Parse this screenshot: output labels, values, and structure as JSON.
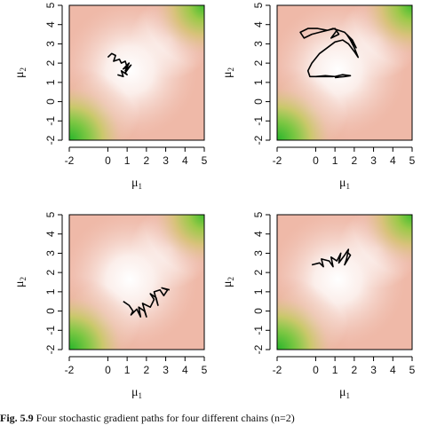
{
  "figure": {
    "caption_label": "Fig. 5.9",
    "caption_text": "Four stochastic gradient paths for four different chains (n=2)"
  },
  "chart_data": [
    {
      "type": "line",
      "panel": "top-left",
      "xlabel": "μ",
      "xlabel_sub": "1",
      "ylabel": "μ",
      "ylabel_sub": "2",
      "xlim": [
        -2,
        5
      ],
      "ylim": [
        -2,
        5
      ],
      "xticks": [
        "-2",
        "0",
        "1",
        "2",
        "3",
        "4",
        "5"
      ],
      "yticks": [
        "-2",
        "-1",
        "0",
        "1",
        "2",
        "3",
        "4",
        "5"
      ],
      "background": "density surface: green minima near (-2,-2) and (5,5), pink elsewhere, white plateau near center",
      "series": [
        {
          "x": [
            0.0,
            0.2,
            0.4,
            0.3,
            0.6,
            0.7,
            0.9,
            1.0,
            0.8,
            1.1,
            0.9,
            1.2,
            0.9,
            1.0,
            0.7,
            0.8,
            0.5
          ],
          "y": [
            2.3,
            2.5,
            2.4,
            2.1,
            2.2,
            2.0,
            2.1,
            1.8,
            1.7,
            2.0,
            1.6,
            1.9,
            1.5,
            1.4,
            1.6,
            1.3,
            1.4
          ]
        }
      ]
    },
    {
      "type": "line",
      "panel": "top-right",
      "xlabel": "μ",
      "xlabel_sub": "1",
      "ylabel": "μ",
      "ylabel_sub": "2",
      "xlim": [
        -2,
        5
      ],
      "ylim": [
        -2,
        5
      ],
      "xticks": [
        "-2",
        "0",
        "1",
        "2",
        "3",
        "4",
        "5"
      ],
      "yticks": [
        "-2",
        "-1",
        "0",
        "1",
        "2",
        "3",
        "4",
        "5"
      ],
      "series": [
        {
          "x": [
            0.9,
            0.5,
            0.2,
            0.0,
            -0.3,
            -0.4,
            -0.2,
            0.2,
            0.6,
            1.0,
            1.4,
            1.7,
            2.0,
            2.2,
            2.0,
            1.8,
            1.6,
            1.9,
            2.1,
            1.8,
            1.5,
            1.2,
            0.9,
            0.6,
            0.2,
            -0.2,
            -0.6,
            -0.8,
            -0.4,
            0.1,
            0.6,
            1.0,
            1.2,
            0.8,
            1.1
          ],
          "y": [
            1.3,
            1.3,
            1.3,
            1.3,
            1.3,
            1.6,
            2.0,
            2.5,
            2.8,
            3.1,
            3.2,
            3.0,
            2.6,
            2.3,
            2.8,
            3.2,
            3.5,
            3.2,
            2.8,
            3.3,
            3.6,
            3.7,
            3.8,
            3.7,
            3.6,
            3.5,
            3.3,
            3.6,
            3.8,
            3.8,
            3.7,
            3.8,
            3.5,
            3.3,
            3.7
          ]
        },
        {
          "x": [
            0.0,
            0.5,
            1.0,
            1.4,
            1.8,
            1.5,
            1.0
          ],
          "y": [
            1.3,
            1.35,
            1.3,
            1.4,
            1.35,
            1.3,
            1.25
          ]
        }
      ]
    },
    {
      "type": "line",
      "panel": "bottom-left",
      "xlabel": "μ",
      "xlabel_sub": "1",
      "ylabel": "μ",
      "ylabel_sub": "2",
      "xlim": [
        -2,
        5
      ],
      "ylim": [
        -2,
        5
      ],
      "xticks": [
        "-2",
        "0",
        "1",
        "2",
        "3",
        "4",
        "5"
      ],
      "yticks": [
        "-2",
        "-1",
        "0",
        "1",
        "2",
        "3",
        "4",
        "5"
      ],
      "series": [
        {
          "x": [
            0.8,
            1.1,
            1.3,
            1.2,
            1.5,
            1.7,
            1.6,
            1.9,
            2.0,
            1.8,
            2.2,
            2.4,
            2.2,
            2.5,
            2.6,
            2.4,
            2.7,
            2.9,
            3.1,
            2.8,
            3.2
          ],
          "y": [
            0.5,
            0.3,
            0.0,
            -0.2,
            0.1,
            -0.3,
            0.2,
            0.0,
            -0.3,
            0.4,
            0.2,
            0.6,
            0.9,
            0.7,
            0.3,
            1.0,
            1.1,
            0.8,
            1.1,
            1.2,
            1.1
          ]
        }
      ]
    },
    {
      "type": "line",
      "panel": "bottom-right",
      "xlabel": "μ",
      "xlabel_sub": "1",
      "ylabel": "μ",
      "ylabel_sub": "2",
      "xlim": [
        -2,
        5
      ],
      "ylim": [
        -2,
        5
      ],
      "xticks": [
        "-2",
        "0",
        "1",
        "2",
        "3",
        "4",
        "5"
      ],
      "yticks": [
        "-2",
        "-1",
        "0",
        "1",
        "2",
        "3",
        "4",
        "5"
      ],
      "series": [
        {
          "x": [
            -0.2,
            0.2,
            0.4,
            0.3,
            0.7,
            0.9,
            0.8,
            1.1,
            1.3,
            1.2,
            1.5,
            1.7,
            1.6,
            1.5,
            1.8,
            1.6
          ],
          "y": [
            2.4,
            2.5,
            2.3,
            2.7,
            2.6,
            2.3,
            2.8,
            2.6,
            3.0,
            2.5,
            2.9,
            3.2,
            2.7,
            2.4,
            2.9,
            3.1
          ]
        }
      ]
    }
  ]
}
